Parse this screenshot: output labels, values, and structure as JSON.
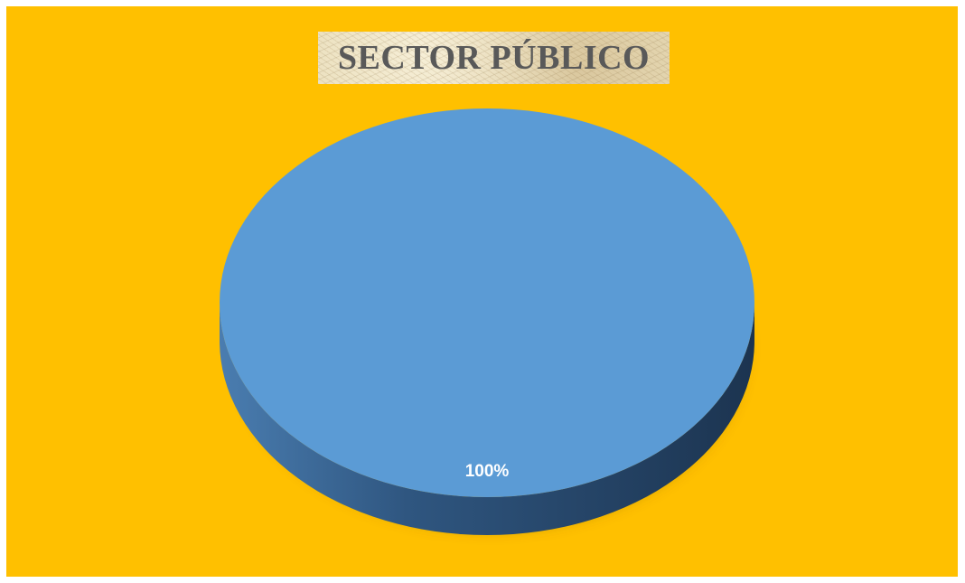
{
  "chart_data": {
    "type": "pie",
    "title": "SECTOR PÚBLICO",
    "categories": [
      ""
    ],
    "values": [
      100
    ],
    "data_labels": [
      "100%"
    ],
    "style": "3d",
    "legend": "none",
    "colors": {
      "background": "#ffc000",
      "slice_top": "#5b9bd5",
      "slice_side_light": "#3a6795",
      "slice_side_dark": "#1f3c5a",
      "title_text": "#595959",
      "label_text": "#ffffff"
    }
  }
}
